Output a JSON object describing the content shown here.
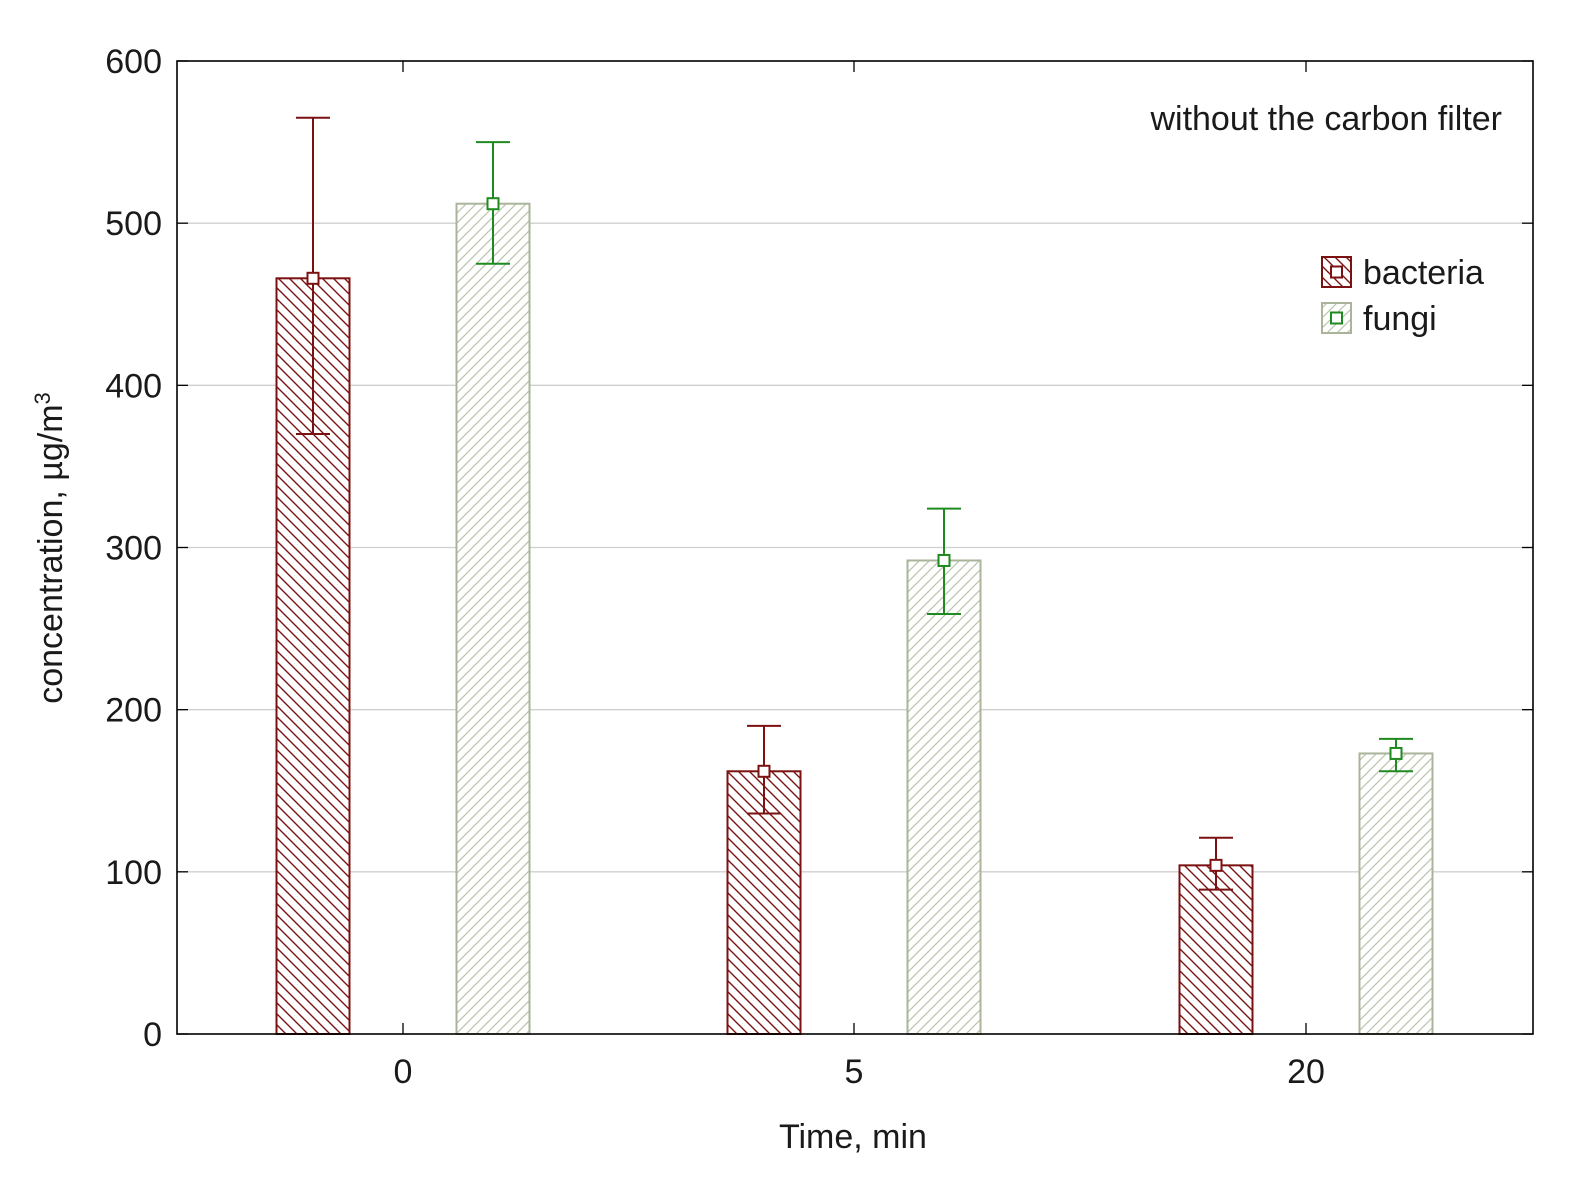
{
  "chart_data": {
    "type": "bar",
    "title": "",
    "annotation": "without the carbon filter",
    "xlabel": "Time, min",
    "ylabel_main": "concentration, µg/m",
    "ylabel_superscript": "3",
    "categories": [
      "0",
      "5",
      "20"
    ],
    "ylim": [
      0,
      600
    ],
    "yticks": [
      0,
      100,
      200,
      300,
      400,
      500,
      600
    ],
    "grid": true,
    "legend_position": "top-right",
    "series": [
      {
        "name": "bacteria",
        "values": [
          466,
          162,
          104
        ],
        "error_low": [
          370,
          136,
          89
        ],
        "error_high": [
          565,
          190,
          121
        ],
        "color": "#7b1111",
        "hatch": "backward-diagonal"
      },
      {
        "name": "fungi",
        "values": [
          512,
          292,
          173
        ],
        "error_low": [
          475,
          259,
          162
        ],
        "error_high": [
          550,
          324,
          182
        ],
        "color": "#1f8a1f",
        "bar_edge_color": "#a9b49a",
        "hatch": "forward-diagonal"
      }
    ]
  }
}
